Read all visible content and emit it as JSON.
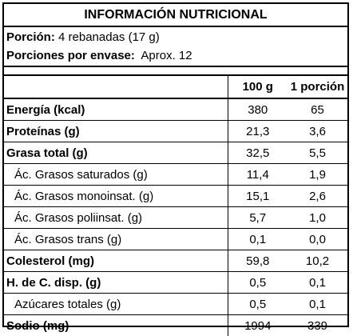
{
  "title": "INFORMACIÓN NUTRICIONAL",
  "serving": {
    "portion_label": "Porción:",
    "portion_value": " 4 rebanadas (17 g)",
    "per_container_label": "Porciones por envase:",
    "per_container_value": "  Aprox. 12"
  },
  "table": {
    "headers": [
      "",
      "100 g",
      "1 porción"
    ],
    "rows": [
      {
        "name": "Energía (kcal)",
        "per100": "380",
        "portion": "65",
        "bold": true
      },
      {
        "name": "Proteínas (g)",
        "per100": "21,3",
        "portion": "3,6",
        "bold": true
      },
      {
        "name": "Grasa total (g)",
        "per100": "32,5",
        "portion": "5,5",
        "bold": true
      },
      {
        "name": "Ác. Grasos saturados (g)",
        "per100": "11,4",
        "portion": "1,9",
        "bold": false
      },
      {
        "name": "Ác. Grasos monoinsat. (g)",
        "per100": "15,1",
        "portion": "2,6",
        "bold": false
      },
      {
        "name": "Ác. Grasos poliinsat. (g)",
        "per100": "5,7",
        "portion": "1,0",
        "bold": false
      },
      {
        "name": "Ác. Grasos trans (g)",
        "per100": "0,1",
        "portion": "0,0",
        "bold": false
      },
      {
        "name": "Colesterol (mg)",
        "per100": "59,8",
        "portion": "10,2",
        "bold": true
      },
      {
        "name": "H. de C. disp. (g)",
        "per100": "0,5",
        "portion": "0,1",
        "bold": true
      },
      {
        "name": "Azúcares totales (g)",
        "per100": "0,5",
        "portion": "0,1",
        "bold": false
      },
      {
        "name": "Sodio (mg)",
        "per100": "1994",
        "portion": "339",
        "bold": true
      }
    ]
  }
}
